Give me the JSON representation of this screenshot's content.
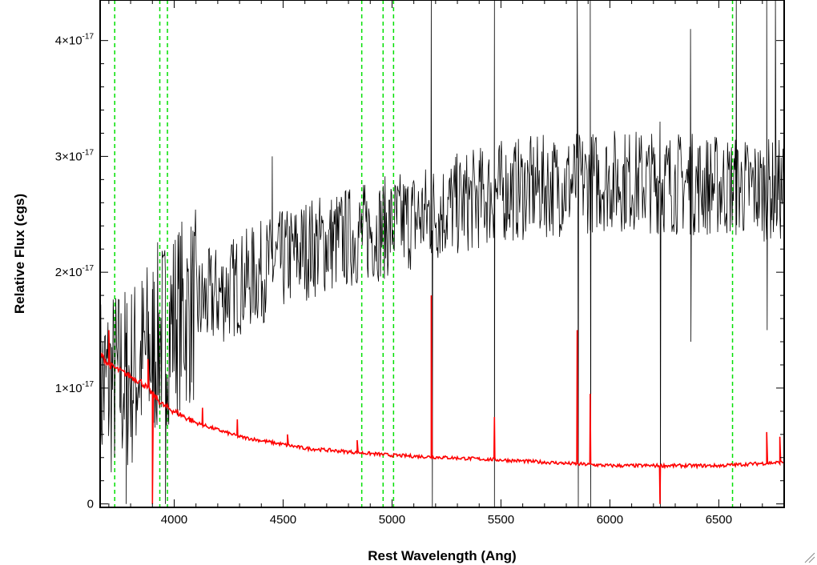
{
  "chart_data": {
    "type": "line",
    "xlabel": "Rest Wavelength (Ang)",
    "ylabel": "Relative Flux (cgs)",
    "xlim": [
      3660,
      6800
    ],
    "ylim": [
      -3e-19,
      4.35e-17
    ],
    "xticks": [
      {
        "value": 4000,
        "label": "4000"
      },
      {
        "value": 4500,
        "label": "4500"
      },
      {
        "value": 5000,
        "label": "5000"
      },
      {
        "value": 5500,
        "label": "5500"
      },
      {
        "value": 6000,
        "label": "6000"
      },
      {
        "value": 6500,
        "label": "6500"
      }
    ],
    "yticks": [
      {
        "value": 0,
        "mantissa": "0",
        "exponent": ""
      },
      {
        "value": 1e-17,
        "mantissa": "1×10",
        "exponent": "-17"
      },
      {
        "value": 2e-17,
        "mantissa": "2×10",
        "exponent": "-17"
      },
      {
        "value": 3e-17,
        "mantissa": "3×10",
        "exponent": "-17"
      },
      {
        "value": 4e-17,
        "mantissa": "4×10",
        "exponent": "-17"
      }
    ],
    "reference_lines": [
      3727,
      3934,
      3969,
      4861,
      4959,
      5007,
      6563
    ],
    "series": [
      {
        "color": "#000000",
        "style": "noisy-spectrum",
        "continuum": [
          [
            3660,
            1.0
          ],
          [
            3800,
            1.1
          ],
          [
            4000,
            1.6
          ],
          [
            4300,
            1.9
          ],
          [
            4600,
            2.2
          ],
          [
            5000,
            2.4
          ],
          [
            5500,
            2.7
          ],
          [
            6000,
            2.8
          ],
          [
            6500,
            2.75
          ],
          [
            6800,
            2.7
          ]
        ],
        "spikes": [
          {
            "x": 3780,
            "y": 0.0
          },
          {
            "x": 3900,
            "y": 0.0
          },
          {
            "x": 3960,
            "y": 0.0
          },
          {
            "x": 4450,
            "y": 3.0
          },
          {
            "x": 5180,
            "y": 4.5
          },
          {
            "x": 5185,
            "y": -0.5
          },
          {
            "x": 5470,
            "y": 4.5
          },
          {
            "x": 5470,
            "y": -0.5
          },
          {
            "x": 5850,
            "y": 4.5
          },
          {
            "x": 5855,
            "y": -0.5
          },
          {
            "x": 5910,
            "y": 4.5
          },
          {
            "x": 5912,
            "y": -0.5
          },
          {
            "x": 6230,
            "y": 3.3
          },
          {
            "x": 6232,
            "y": -0.5
          },
          {
            "x": 6370,
            "y": 4.1
          },
          {
            "x": 6372,
            "y": 1.4
          },
          {
            "x": 6580,
            "y": 4.5
          },
          {
            "x": 6720,
            "y": 4.5
          },
          {
            "x": 6722,
            "y": 1.5
          },
          {
            "x": 6760,
            "y": 4.5
          }
        ]
      },
      {
        "color": "#ff0000",
        "style": "error-spectrum",
        "continuum": [
          [
            3660,
            1.3
          ],
          [
            3700,
            1.2
          ],
          [
            3850,
            1.05
          ],
          [
            3950,
            0.85
          ],
          [
            4100,
            0.7
          ],
          [
            4300,
            0.58
          ],
          [
            4600,
            0.48
          ],
          [
            5000,
            0.42
          ],
          [
            5500,
            0.38
          ],
          [
            6000,
            0.33
          ],
          [
            6500,
            0.33
          ],
          [
            6800,
            0.36
          ]
        ],
        "spikes": [
          {
            "x": 3700,
            "y": 1.5
          },
          {
            "x": 3880,
            "y": 1.25
          },
          {
            "x": 3900,
            "y": 0.0
          },
          {
            "x": 4130,
            "y": 0.83
          },
          {
            "x": 4290,
            "y": 0.73
          },
          {
            "x": 4520,
            "y": 0.6
          },
          {
            "x": 4840,
            "y": 0.55
          },
          {
            "x": 5180,
            "y": 1.8
          },
          {
            "x": 5470,
            "y": 0.75
          },
          {
            "x": 5850,
            "y": 1.5
          },
          {
            "x": 5910,
            "y": 0.95
          },
          {
            "x": 6230,
            "y": 0.0
          },
          {
            "x": 6720,
            "y": 0.62
          },
          {
            "x": 6780,
            "y": 0.58
          }
        ]
      }
    ]
  }
}
